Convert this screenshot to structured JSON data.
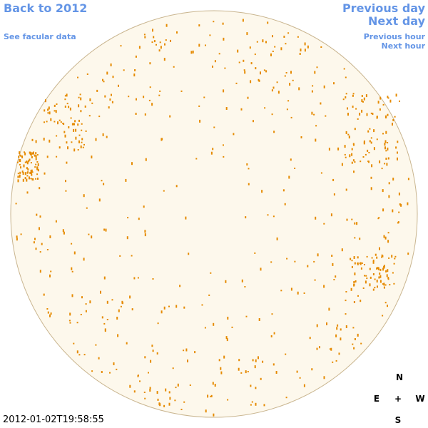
{
  "nav": {
    "back": "Back to 2012",
    "see_facular_data": "See facular data",
    "previous_day": "Previous day",
    "next_day": "Next day",
    "previous_hour": "Previous hour",
    "next_hour": "Next hour"
  },
  "timestamp": "2012-01-02T19:58:55",
  "compass": {
    "north": "N",
    "east": "E",
    "center": "+",
    "west": "W",
    "south": "S"
  }
}
